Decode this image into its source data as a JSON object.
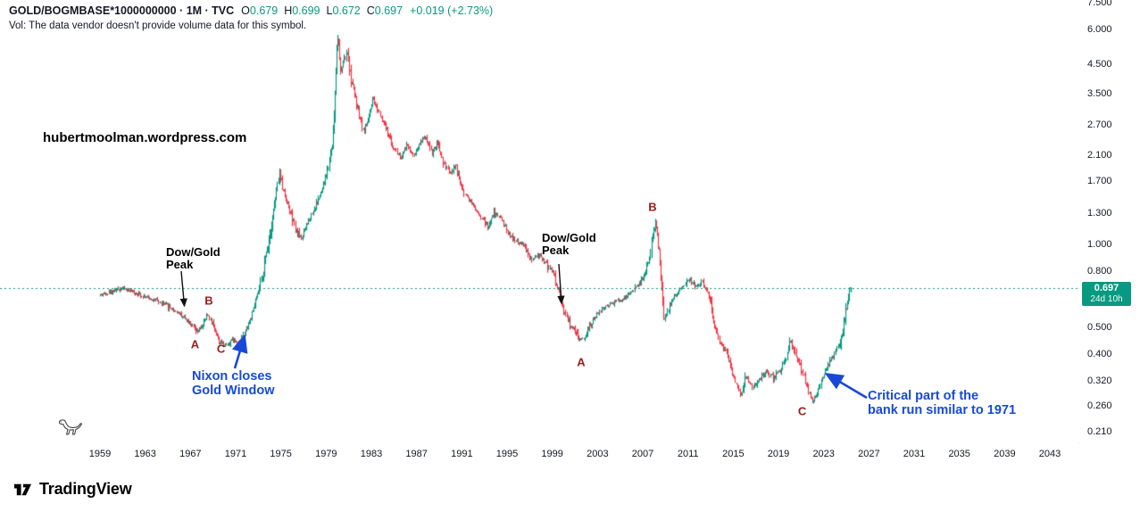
{
  "header": {
    "symbol_title": "GOLD/BOGMBASE*1000000000 · 1M · TVC",
    "ohlc": [
      {
        "label": "O",
        "value": "0.679"
      },
      {
        "label": "H",
        "value": "0.699"
      },
      {
        "label": "L",
        "value": "0.672"
      },
      {
        "label": "C",
        "value": "0.697"
      }
    ],
    "change": "+0.019 (+2.73%)",
    "volume_notice": "Vol: The data vendor doesn't provide volume data for this symbol."
  },
  "watermark": "hubertmoolman.wordpress.com",
  "price_label": {
    "value": "0.697",
    "countdown": "24d 10h"
  },
  "colors": {
    "up": "#089981",
    "down": "#F23645",
    "annotation_blue": "#1849D6",
    "marker_red": "#9B1C1C",
    "axis_text": "#131722"
  },
  "annotations": {
    "dow_gold_1": [
      "Dow/Gold",
      "Peak"
    ],
    "dow_gold_2": [
      "Dow/Gold",
      "Peak"
    ],
    "nixon": [
      "Nixon closes",
      "Gold Window"
    ],
    "bank_run": [
      "Critical part of the",
      "bank run similar to 1971"
    ],
    "markers": [
      {
        "text": "A",
        "year": 1967.4,
        "value": 0.435
      },
      {
        "text": "B",
        "year": 1968.63,
        "value": 0.627
      },
      {
        "text": "C",
        "year": 1969.7,
        "value": 0.419
      },
      {
        "text": "A",
        "year": 2001.55,
        "value": 0.375
      },
      {
        "text": "B",
        "year": 2007.86,
        "value": 1.366
      },
      {
        "text": "C",
        "year": 2021.1,
        "value": 0.2494
      }
    ]
  },
  "axes": {
    "price_ticks": [
      {
        "v": 7.5,
        "label": "7.500"
      },
      {
        "v": 6.0,
        "label": "6.000"
      },
      {
        "v": 4.5,
        "label": "4.500"
      },
      {
        "v": 3.5,
        "label": "3.500"
      },
      {
        "v": 2.7,
        "label": "2.700"
      },
      {
        "v": 2.1,
        "label": "2.100"
      },
      {
        "v": 1.7,
        "label": "1.700"
      },
      {
        "v": 1.3,
        "label": "1.300"
      },
      {
        "v": 1.0,
        "label": "1.000"
      },
      {
        "v": 0.8,
        "label": "0.800"
      },
      {
        "v": 0.5,
        "label": "0.500"
      },
      {
        "v": 0.4,
        "label": "0.400"
      },
      {
        "v": 0.32,
        "label": "0.320"
      },
      {
        "v": 0.26,
        "label": "0.260"
      },
      {
        "v": 0.21,
        "label": "0.210"
      }
    ],
    "year_ticks": [
      1959,
      1963,
      1967,
      1971,
      1975,
      1979,
      1983,
      1987,
      1991,
      1995,
      1999,
      2003,
      2007,
      2011,
      2015,
      2019,
      2023,
      2027,
      2031,
      2035,
      2039,
      2043
    ]
  },
  "chart_data": {
    "type": "candlestick",
    "symbol": "GOLD/BOGMBASE*1000000000",
    "interval": "1M",
    "exchange": "TVC",
    "y_scale": "log",
    "x_start": 1959.0,
    "x_end": 2045.5,
    "price_line": 0.697,
    "last_ohlc": {
      "open": 0.679,
      "high": 0.699,
      "low": 0.672,
      "close": 0.697,
      "change": 0.019,
      "change_pct": 2.73
    },
    "keypoints": [
      [
        1959.0,
        0.655
      ],
      [
        1960.0,
        0.675
      ],
      [
        1961.0,
        0.695
      ],
      [
        1962.0,
        0.672
      ],
      [
        1963.0,
        0.648
      ],
      [
        1964.0,
        0.625
      ],
      [
        1965.0,
        0.6
      ],
      [
        1966.0,
        0.565
      ],
      [
        1967.0,
        0.525
      ],
      [
        1967.6,
        0.478
      ],
      [
        1968.1,
        0.505
      ],
      [
        1968.6,
        0.558
      ],
      [
        1969.0,
        0.52
      ],
      [
        1969.6,
        0.445
      ],
      [
        1970.2,
        0.433
      ],
      [
        1970.8,
        0.455
      ],
      [
        1971.3,
        0.44
      ],
      [
        1971.8,
        0.475
      ],
      [
        1972.5,
        0.555
      ],
      [
        1973.2,
        0.7
      ],
      [
        1973.8,
        0.95
      ],
      [
        1974.4,
        1.3
      ],
      [
        1974.9,
        1.8
      ],
      [
        1975.3,
        1.55
      ],
      [
        1975.8,
        1.35
      ],
      [
        1976.4,
        1.12
      ],
      [
        1976.9,
        1.05
      ],
      [
        1977.5,
        1.22
      ],
      [
        1978.2,
        1.4
      ],
      [
        1978.8,
        1.6
      ],
      [
        1979.3,
        1.95
      ],
      [
        1979.7,
        2.6
      ],
      [
        1980.05,
        5.9
      ],
      [
        1980.35,
        4.1
      ],
      [
        1980.6,
        4.6
      ],
      [
        1980.9,
        4.9
      ],
      [
        1981.3,
        3.9
      ],
      [
        1981.8,
        3.2
      ],
      [
        1982.4,
        2.55
      ],
      [
        1982.9,
        2.95
      ],
      [
        1983.2,
        3.3
      ],
      [
        1983.7,
        3.05
      ],
      [
        1984.3,
        2.65
      ],
      [
        1985.0,
        2.25
      ],
      [
        1985.7,
        2.05
      ],
      [
        1986.2,
        2.3
      ],
      [
        1986.8,
        2.1
      ],
      [
        1987.4,
        2.35
      ],
      [
        1987.9,
        2.45
      ],
      [
        1988.4,
        2.15
      ],
      [
        1988.9,
        2.3
      ],
      [
        1989.5,
        1.95
      ],
      [
        1990.1,
        1.8
      ],
      [
        1990.5,
        1.95
      ],
      [
        1991.2,
        1.55
      ],
      [
        1992.0,
        1.4
      ],
      [
        1992.8,
        1.25
      ],
      [
        1993.4,
        1.15
      ],
      [
        1993.9,
        1.3
      ],
      [
        1994.5,
        1.25
      ],
      [
        1995.2,
        1.1
      ],
      [
        1995.9,
        1.02
      ],
      [
        1996.5,
        1.0
      ],
      [
        1997.2,
        0.88
      ],
      [
        1997.9,
        0.92
      ],
      [
        1998.5,
        0.85
      ],
      [
        1999.1,
        0.8
      ],
      [
        1999.6,
        0.68
      ],
      [
        2000.2,
        0.56
      ],
      [
        2000.8,
        0.5
      ],
      [
        2001.4,
        0.445
      ],
      [
        2001.9,
        0.465
      ],
      [
        2002.5,
        0.52
      ],
      [
        2003.1,
        0.56
      ],
      [
        2003.8,
        0.6
      ],
      [
        2004.5,
        0.615
      ],
      [
        2005.2,
        0.63
      ],
      [
        2005.9,
        0.66
      ],
      [
        2006.5,
        0.7
      ],
      [
        2007.1,
        0.75
      ],
      [
        2007.6,
        0.88
      ],
      [
        2008.0,
        1.1
      ],
      [
        2008.2,
        1.22
      ],
      [
        2008.6,
        0.85
      ],
      [
        2008.95,
        0.54
      ],
      [
        2009.4,
        0.6
      ],
      [
        2009.9,
        0.65
      ],
      [
        2010.5,
        0.7
      ],
      [
        2011.2,
        0.755
      ],
      [
        2011.7,
        0.7
      ],
      [
        2012.3,
        0.73
      ],
      [
        2012.9,
        0.66
      ],
      [
        2013.4,
        0.52
      ],
      [
        2013.9,
        0.44
      ],
      [
        2014.5,
        0.405
      ],
      [
        2015.0,
        0.345
      ],
      [
        2015.7,
        0.285
      ],
      [
        2016.2,
        0.335
      ],
      [
        2016.8,
        0.305
      ],
      [
        2017.4,
        0.325
      ],
      [
        2018.0,
        0.345
      ],
      [
        2018.6,
        0.33
      ],
      [
        2019.2,
        0.35
      ],
      [
        2019.7,
        0.39
      ],
      [
        2020.1,
        0.45
      ],
      [
        2020.5,
        0.4
      ],
      [
        2020.9,
        0.37
      ],
      [
        2021.3,
        0.33
      ],
      [
        2021.7,
        0.295
      ],
      [
        2022.1,
        0.272
      ],
      [
        2022.5,
        0.29
      ],
      [
        2022.9,
        0.325
      ],
      [
        2023.3,
        0.355
      ],
      [
        2023.7,
        0.385
      ],
      [
        2024.1,
        0.41
      ],
      [
        2024.5,
        0.455
      ],
      [
        2024.8,
        0.51
      ],
      [
        2025.0,
        0.565
      ],
      [
        2025.2,
        0.63
      ],
      [
        2025.42,
        0.697
      ]
    ]
  },
  "footer": {
    "brand": "TradingView"
  }
}
